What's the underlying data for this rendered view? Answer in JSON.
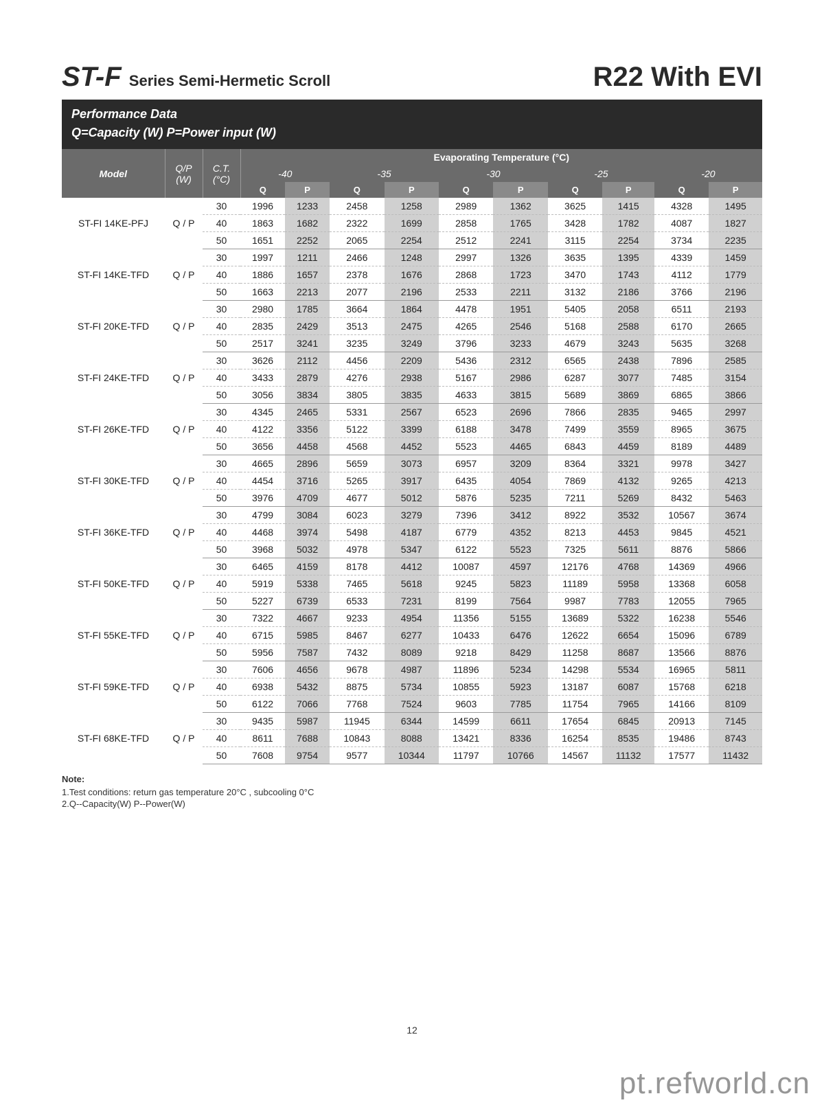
{
  "header": {
    "title_prefix": "ST-F",
    "title_suffix": "Series Semi-Hermetic Scroll",
    "title_right": "R22 With EVI",
    "bar_line1": "Performance Data",
    "bar_line2": "Q=Capacity (W) P=Power input (W)"
  },
  "table": {
    "model_header": "Model",
    "qp_header": "Q/P\n(W)",
    "ct_header": "C.T.\n(°C)",
    "evap_title": "Evaporating Temperature (°C)",
    "temps": [
      -40,
      -35,
      -30,
      -25,
      -20
    ],
    "qp_sub": [
      "Q",
      "P"
    ],
    "qp_label": "Q / P",
    "ct_values": [
      30,
      40,
      50
    ],
    "models": [
      {
        "name": "ST-FI 14KE-PFJ",
        "rows": [
          [
            1996,
            1233,
            2458,
            1258,
            2989,
            1362,
            3625,
            1415,
            4328,
            1495
          ],
          [
            1863,
            1682,
            2322,
            1699,
            2858,
            1765,
            3428,
            1782,
            4087,
            1827
          ],
          [
            1651,
            2252,
            2065,
            2254,
            2512,
            2241,
            3115,
            2254,
            3734,
            2235
          ]
        ]
      },
      {
        "name": "ST-FI 14KE-TFD",
        "rows": [
          [
            1997,
            1211,
            2466,
            1248,
            2997,
            1326,
            3635,
            1395,
            4339,
            1459
          ],
          [
            1886,
            1657,
            2378,
            1676,
            2868,
            1723,
            3470,
            1743,
            4112,
            1779
          ],
          [
            1663,
            2213,
            2077,
            2196,
            2533,
            2211,
            3132,
            2186,
            3766,
            2196
          ]
        ]
      },
      {
        "name": "ST-FI 20KE-TFD",
        "rows": [
          [
            2980,
            1785,
            3664,
            1864,
            4478,
            1951,
            5405,
            2058,
            6511,
            2193
          ],
          [
            2835,
            2429,
            3513,
            2475,
            4265,
            2546,
            5168,
            2588,
            6170,
            2665
          ],
          [
            2517,
            3241,
            3235,
            3249,
            3796,
            3233,
            4679,
            3243,
            5635,
            3268
          ]
        ]
      },
      {
        "name": "ST-FI 24KE-TFD",
        "rows": [
          [
            3626,
            2112,
            4456,
            2209,
            5436,
            2312,
            6565,
            2438,
            7896,
            2585
          ],
          [
            3433,
            2879,
            4276,
            2938,
            5167,
            2986,
            6287,
            3077,
            7485,
            3154
          ],
          [
            3056,
            3834,
            3805,
            3835,
            4633,
            3815,
            5689,
            3869,
            6865,
            3866
          ]
        ]
      },
      {
        "name": "ST-FI 26KE-TFD",
        "rows": [
          [
            4345,
            2465,
            5331,
            2567,
            6523,
            2696,
            7866,
            2835,
            9465,
            2997
          ],
          [
            4122,
            3356,
            5122,
            3399,
            6188,
            3478,
            7499,
            3559,
            8965,
            3675
          ],
          [
            3656,
            4458,
            4568,
            4452,
            5523,
            4465,
            6843,
            4459,
            8189,
            4489
          ]
        ]
      },
      {
        "name": "ST-FI 30KE-TFD",
        "rows": [
          [
            4665,
            2896,
            5659,
            3073,
            6957,
            3209,
            8364,
            3321,
            9978,
            3427
          ],
          [
            4454,
            3716,
            5265,
            3917,
            6435,
            4054,
            7869,
            4132,
            9265,
            4213
          ],
          [
            3976,
            4709,
            4677,
            5012,
            5876,
            5235,
            7211,
            5269,
            8432,
            5463
          ]
        ]
      },
      {
        "name": "ST-FI 36KE-TFD",
        "rows": [
          [
            4799,
            3084,
            6023,
            3279,
            7396,
            3412,
            8922,
            3532,
            10567,
            3674
          ],
          [
            4468,
            3974,
            5498,
            4187,
            6779,
            4352,
            8213,
            4453,
            9845,
            4521
          ],
          [
            3968,
            5032,
            4978,
            5347,
            6122,
            5523,
            7325,
            5611,
            8876,
            5866
          ]
        ]
      },
      {
        "name": "ST-FI 50KE-TFD",
        "rows": [
          [
            6465,
            4159,
            8178,
            4412,
            10087,
            4597,
            12176,
            4768,
            14369,
            4966
          ],
          [
            5919,
            5338,
            7465,
            5618,
            9245,
            5823,
            11189,
            5958,
            13368,
            6058
          ],
          [
            5227,
            6739,
            6533,
            7231,
            8199,
            7564,
            9987,
            7783,
            12055,
            7965
          ]
        ]
      },
      {
        "name": "ST-FI 55KE-TFD",
        "rows": [
          [
            7322,
            4667,
            9233,
            4954,
            11356,
            5155,
            13689,
            5322,
            16238,
            5546
          ],
          [
            6715,
            5985,
            8467,
            6277,
            10433,
            6476,
            12622,
            6654,
            15096,
            6789
          ],
          [
            5956,
            7587,
            7432,
            8089,
            9218,
            8429,
            11258,
            8687,
            13566,
            8876
          ]
        ]
      },
      {
        "name": "ST-FI 59KE-TFD",
        "rows": [
          [
            7606,
            4656,
            9678,
            4987,
            11896,
            5234,
            14298,
            5534,
            16965,
            5811
          ],
          [
            6938,
            5432,
            8875,
            5734,
            10855,
            5923,
            13187,
            6087,
            15768,
            6218
          ],
          [
            6122,
            7066,
            7768,
            7524,
            9603,
            7785,
            11754,
            7965,
            14166,
            8109
          ]
        ]
      },
      {
        "name": "ST-FI 68KE-TFD",
        "rows": [
          [
            9435,
            5987,
            11945,
            6344,
            14599,
            6611,
            17654,
            6845,
            20913,
            7145
          ],
          [
            8611,
            7688,
            10843,
            8088,
            13421,
            8336,
            16254,
            8535,
            19486,
            8743
          ],
          [
            7608,
            9754,
            9577,
            10344,
            11797,
            10766,
            14567,
            11132,
            17577,
            11432
          ]
        ]
      }
    ]
  },
  "notes": {
    "heading": "Note:",
    "lines": [
      "1.Test conditions: return gas temperature 20°C , subcooling 0°C",
      "2.Q--Capacity(W) P--Power(W)"
    ]
  },
  "page_number": "12",
  "watermark": "pt.refworld.cn"
}
